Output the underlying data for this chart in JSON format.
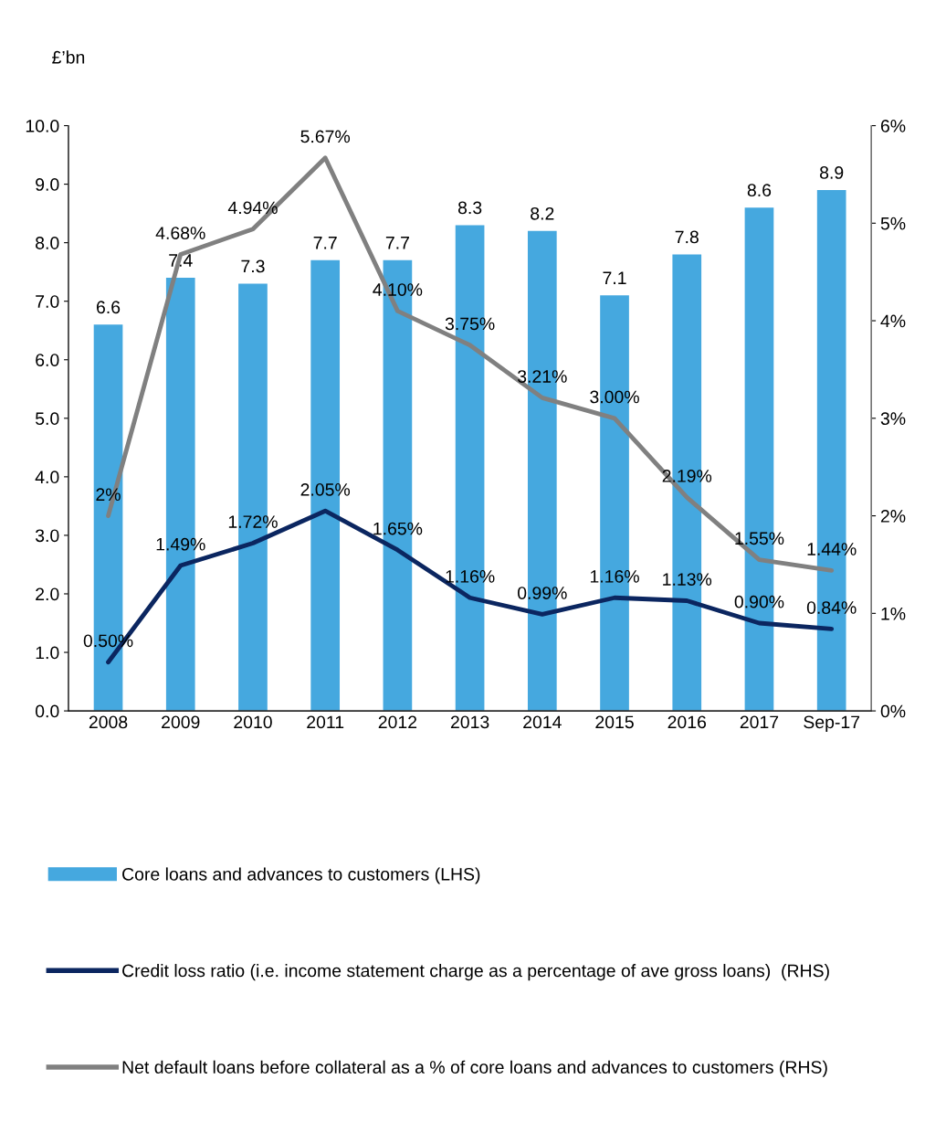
{
  "chart_data": {
    "type": "bar",
    "ylabel": "£’bn",
    "categories": [
      "2008",
      "2009",
      "2010",
      "2011",
      "2012",
      "2013",
      "2014",
      "2015",
      "2016",
      "2017",
      "Sep-17"
    ],
    "series": [
      {
        "name": "Core loans and advances to customers (LHS)",
        "color": "#45a8df",
        "values": [
          6.6,
          7.4,
          7.3,
          7.7,
          7.7,
          8.3,
          8.2,
          7.1,
          7.8,
          8.6,
          8.9
        ],
        "value_labels": [
          "6.6",
          "7.4",
          "7.3",
          "7.7",
          "7.7",
          "8.3",
          "8.2",
          "7.1",
          "7.8",
          "8.6",
          "8.9"
        ]
      },
      {
        "name": "Credit loss ratio (i.e. income statement charge as a percentage of ave gross loans)  (RHS)",
        "type": "line",
        "axis": "y2",
        "color": "#0b2660",
        "values": [
          0.5,
          1.49,
          1.72,
          2.05,
          1.65,
          1.16,
          0.99,
          1.16,
          1.13,
          0.9,
          0.84
        ],
        "value_labels": [
          "0.50%",
          "1.49%",
          "1.72%",
          "2.05%",
          "1.65%",
          "1.16%",
          "0.99%",
          "1.16%",
          "1.13%",
          "0.90%",
          "0.84%"
        ]
      },
      {
        "name": "Net default loans before collateral as a % of core loans and advances to customers (RHS)",
        "type": "line",
        "axis": "y2",
        "color": "#808080",
        "values": [
          2,
          4.68,
          4.94,
          5.67,
          4.1,
          3.75,
          3.21,
          3.0,
          2.19,
          1.55,
          1.44
        ],
        "value_labels": [
          "2%",
          "4.68%",
          "4.94%",
          "5.67%",
          "4.10%",
          "3.75%",
          "3.21%",
          "3.00%",
          "2.19%",
          "1.55%",
          "1.44%"
        ]
      }
    ],
    "ylim": [
      0,
      10
    ],
    "yticks": [
      {
        "value": 0,
        "label": "0.0"
      },
      {
        "value": 1,
        "label": "1.0"
      },
      {
        "value": 2,
        "label": "2.0"
      },
      {
        "value": 3,
        "label": "3.0"
      },
      {
        "value": 4,
        "label": "4.0"
      },
      {
        "value": 5,
        "label": "5.0"
      },
      {
        "value": 6,
        "label": "6.0"
      },
      {
        "value": 7,
        "label": "7.0"
      },
      {
        "value": 8,
        "label": "8.0"
      },
      {
        "value": 9,
        "label": "9.0"
      },
      {
        "value": 10,
        "label": "10.0"
      }
    ],
    "y2lim": [
      0,
      6
    ],
    "y2ticks": [
      {
        "value": 0,
        "label": "0%"
      },
      {
        "value": 1,
        "label": "1%"
      },
      {
        "value": 2,
        "label": "2%"
      },
      {
        "value": 3,
        "label": "3%"
      },
      {
        "value": 4,
        "label": "4%"
      },
      {
        "value": 5,
        "label": "5%"
      },
      {
        "value": 6,
        "label": "6%"
      }
    ],
    "grid": false,
    "legend": "bottom",
    "marker": "none",
    "line_style": "solid"
  }
}
